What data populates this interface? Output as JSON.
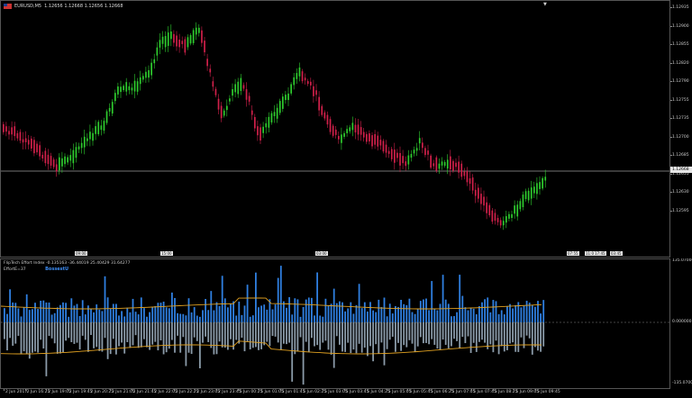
{
  "symbol": {
    "flag": "us-eu-flag-icon",
    "name": "EURUSD,M5",
    "ohlc": "1.12656 1.12668 1.12656 1.12668"
  },
  "colors": {
    "bull": "#2ecc2e",
    "bear": "#d0204a",
    "indicator_up": "#2f7fe0",
    "indicator_down": "#8a9aa8",
    "band": "#e0a020",
    "current_price_line": "#9a9a9a"
  },
  "price_axis": {
    "labels": [
      "1.12935",
      "1.12900",
      "1.12855",
      "1.12820",
      "1.12790",
      "1.12755",
      "1.12735",
      "1.12700",
      "1.12685",
      "1.12655",
      "1.12630",
      "1.12595"
    ],
    "current_price": "1.12668"
  },
  "indicator": {
    "title": "FlipTech Effort Index -0.135163 -36.44019 25.40429 31.64277",
    "subtitle": "EffortE=37",
    "selected_label": "BossestU",
    "axis_labels": [
      "135.070000",
      "0.000000",
      "-135.070000"
    ]
  },
  "chart_labels": [
    "09:00",
    "15:00",
    "03:00",
    "07:55",
    "11:00",
    "17:45",
    "03:45"
  ],
  "time_axis": [
    "2 Jun 2017",
    "2 Jun 16:25",
    "2 Jun 19:05",
    "2 Jun 19:45",
    "2 Jun 20:25",
    "2 Jun 21:05",
    "2 Jun 21:45",
    "2 Jun 22:05",
    "2 Jun 22:25",
    "2 Jun 23:05",
    "2 Jun 23:45",
    "5 Jun 00:25",
    "5 Jun 01:05",
    "5 Jun 01:45",
    "5 Jun 02:25",
    "5 Jun 03:05",
    "5 Jun 03:45",
    "5 Jun 04:25",
    "5 Jun 05:05",
    "5 Jun 05:45",
    "5 Jun 06:25",
    "5 Jun 07:05",
    "5 Jun 07:45",
    "5 Jun 08:25",
    "5 Jun 09:05",
    "5 Jun 09:45"
  ],
  "scroll_icon": "triangle-down-icon"
}
